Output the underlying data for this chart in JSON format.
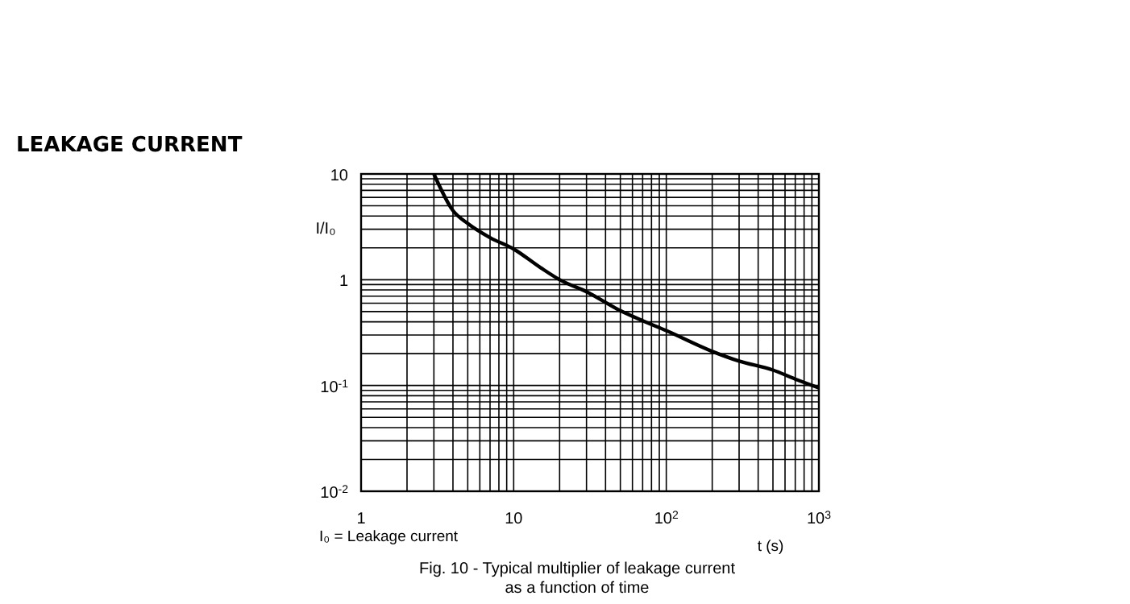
{
  "chart_data": {
    "type": "line",
    "title": "LEAKAGE CURRENT",
    "xlabel": "t (s)",
    "ylabel": "I/I₀",
    "annotations": [
      "I₀ = Leakage current",
      "Fig. 10 - Typical multiplier of leakage current\nas a function of time"
    ],
    "log": "xy",
    "grid": true,
    "marker": "none",
    "line_style": "solid",
    "xlim": [
      1,
      1000
    ],
    "ylim": [
      0.01,
      10
    ],
    "xticks": [
      1,
      {
        "value": 2,
        "label": null
      },
      {
        "value": 3,
        "label": null
      },
      {
        "value": 4,
        "label": null
      },
      {
        "value": 5,
        "label": null
      },
      {
        "value": 6,
        "label": null
      },
      {
        "value": 7,
        "label": null
      },
      {
        "value": 8,
        "label": null
      },
      {
        "value": 9,
        "label": null
      },
      10,
      {
        "value": 20,
        "label": null
      },
      {
        "value": 30,
        "label": null
      },
      {
        "value": 40,
        "label": null
      },
      {
        "value": 50,
        "label": null
      },
      {
        "value": 60,
        "label": null
      },
      {
        "value": 70,
        "label": null
      },
      {
        "value": 80,
        "label": null
      },
      {
        "value": 90,
        "label": null
      },
      {
        "value": 100,
        "label": "10$^{2}$"
      },
      {
        "value": 200,
        "label": null
      },
      {
        "value": 300,
        "label": null
      },
      {
        "value": 400,
        "label": null
      },
      {
        "value": 500,
        "label": null
      },
      {
        "value": 600,
        "label": null
      },
      {
        "value": 700,
        "label": null
      },
      {
        "value": 800,
        "label": null
      },
      {
        "value": 900,
        "label": null
      },
      {
        "value": 1000,
        "label": "10$^{3}$"
      }
    ],
    "yticks": [
      {
        "value": 0.01,
        "label": "10$^{-2}$"
      },
      {
        "value": 0.02,
        "label": null
      },
      {
        "value": 0.03,
        "label": null
      },
      {
        "value": 0.04,
        "label": null
      },
      {
        "value": 0.05,
        "label": null
      },
      {
        "value": 0.06,
        "label": null
      },
      {
        "value": 0.07,
        "label": null
      },
      {
        "value": 0.08,
        "label": null
      },
      {
        "value": 0.09,
        "label": null
      },
      {
        "value": 0.1,
        "label": "10$^{-1}$"
      },
      {
        "value": 0.2,
        "label": null
      },
      {
        "value": 0.3,
        "label": null
      },
      {
        "value": 0.4,
        "label": null
      },
      {
        "value": 0.5,
        "label": null
      },
      {
        "value": 0.6,
        "label": null
      },
      {
        "value": 0.7,
        "label": null
      },
      {
        "value": 0.8,
        "label": null
      },
      {
        "value": 0.9,
        "label": null
      },
      1,
      {
        "value": 2,
        "label": null
      },
      {
        "value": 3,
        "label": null
      },
      {
        "value": 4,
        "label": null
      },
      {
        "value": 5,
        "label": null
      },
      {
        "value": 6,
        "label": null
      },
      {
        "value": 7,
        "label": null
      },
      {
        "value": 8,
        "label": null
      },
      {
        "value": 9,
        "label": null
      },
      10
    ],
    "series": [
      {
        "color": "#000000",
        "x": [
          3,
          4,
          5,
          7,
          10,
          15,
          20,
          30,
          50,
          70,
          100,
          200,
          300,
          500,
          700,
          1000
        ],
        "values": [
          10,
          4.5,
          3.4,
          2.5,
          1.95,
          1.3,
          1.0,
          0.77,
          0.51,
          0.41,
          0.33,
          0.21,
          0.17,
          0.14,
          0.115,
          0.095
        ]
      }
    ]
  }
}
